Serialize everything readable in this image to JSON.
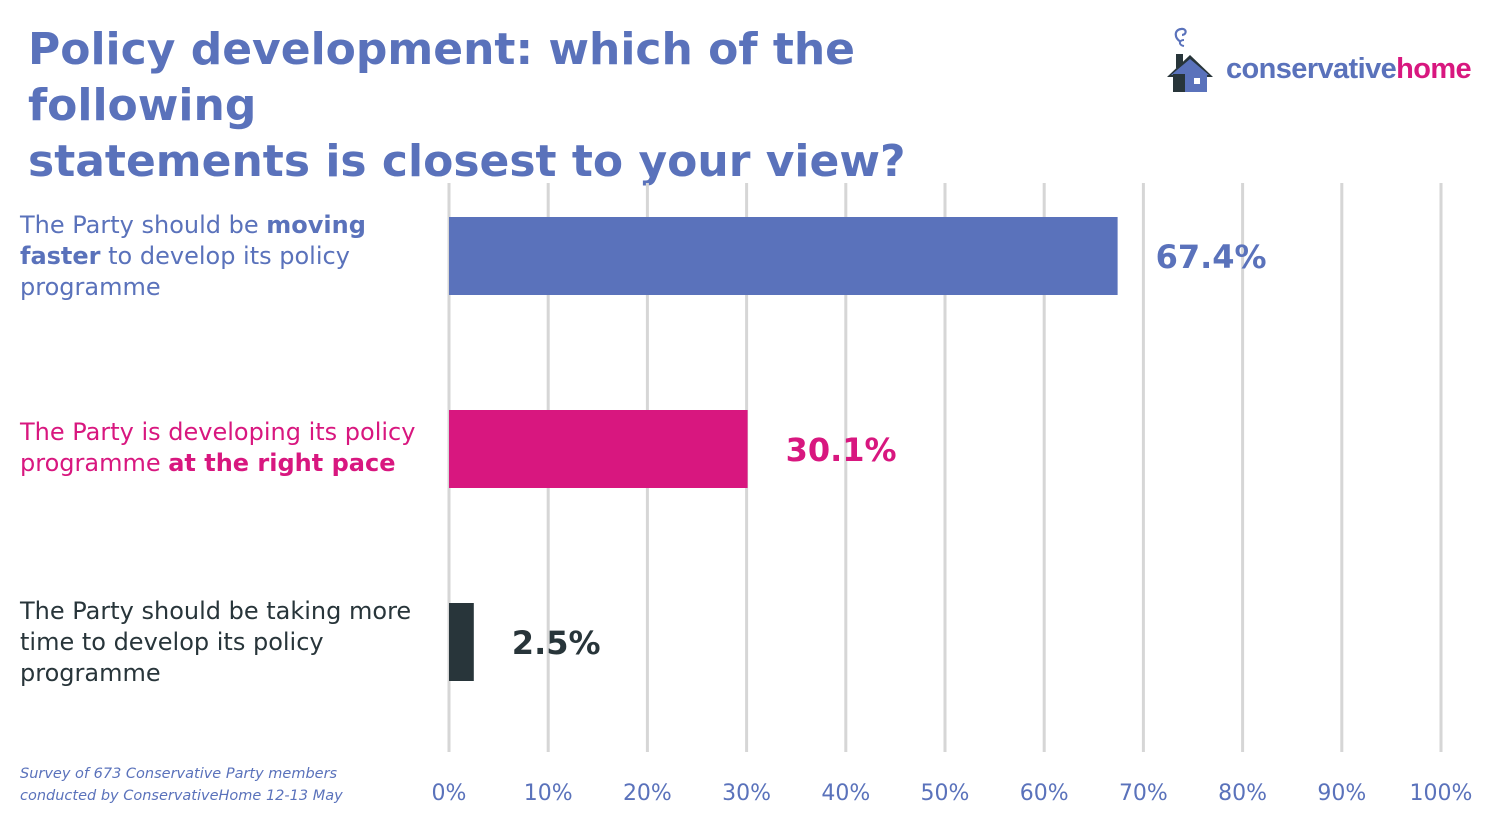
{
  "header": {
    "title_lines": [
      "Policy development: which of the following",
      "statements is closest to your view?"
    ]
  },
  "logo": {
    "part1": "conservative",
    "part2": "home"
  },
  "colors": {
    "blue": "#5a72bb",
    "pink": "#d8177f",
    "dark": "#28353a",
    "grid": "#d6d6d6"
  },
  "labels": [
    {
      "color": "#5a72bb",
      "lines": [
        [
          {
            "t": "The Party should be ",
            "b": false
          },
          {
            "t": "moving",
            "b": true
          }
        ],
        [
          {
            "t": "faster",
            "b": true
          },
          {
            "t": " to develop its policy",
            "b": false
          }
        ],
        [
          {
            "t": "programme",
            "b": false
          }
        ]
      ]
    },
    {
      "color": "#d8177f",
      "lines": [
        [
          {
            "t": "The Party is developing its policy",
            "b": false
          }
        ],
        [
          {
            "t": "programme ",
            "b": false
          },
          {
            "t": "at the right pace",
            "b": true
          }
        ]
      ]
    },
    {
      "color": "#28353a",
      "lines": [
        [
          {
            "t": "The Party should be taking more",
            "b": false
          }
        ],
        [
          {
            "t": "time to develop its policy",
            "b": false
          }
        ],
        [
          {
            "t": "programme",
            "b": false
          }
        ]
      ]
    }
  ],
  "chart_data": {
    "type": "bar",
    "orientation": "horizontal",
    "categories": [
      "The Party should be moving faster to develop its policy programme",
      "The Party is developing its policy programme at the right pace",
      "The Party should be taking more time to develop its policy programme"
    ],
    "values": [
      67.4,
      30.1,
      2.5
    ],
    "value_labels": [
      "67.4%",
      "30.1%",
      "2.5%"
    ],
    "bar_colors": [
      "#5a72bb",
      "#d8177f",
      "#28353a"
    ],
    "xlim": [
      0,
      100
    ],
    "xticks": [
      0,
      10,
      20,
      30,
      40,
      50,
      60,
      70,
      80,
      90,
      100
    ],
    "xtick_labels": [
      "0%",
      "10%",
      "20%",
      "30%",
      "40%",
      "50%",
      "60%",
      "70%",
      "80%",
      "90%",
      "100%"
    ],
    "grid": true,
    "title": "Policy development: which of the following statements is closest to your view?"
  },
  "footer": {
    "source_lines": [
      "Survey of 673 Conservative Party members",
      "conducted by ConservativeHome 12-13 May"
    ]
  }
}
